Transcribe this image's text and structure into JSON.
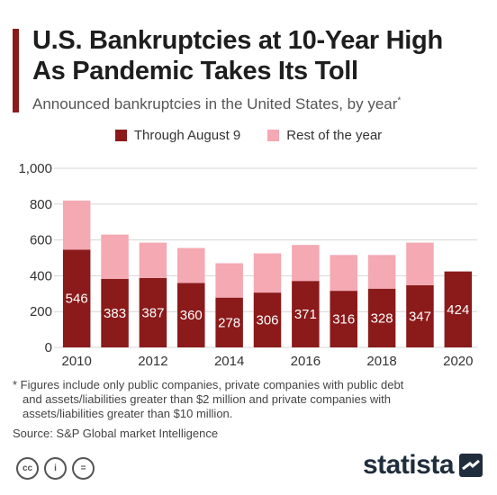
{
  "header": {
    "title_line1": "U.S. Bankruptcies at 10-Year High",
    "title_line2": "As Pandemic Takes Its Toll",
    "subtitle": "Announced bankruptcies in the United States, by year",
    "subtitle_mark": "*"
  },
  "legend": {
    "items": [
      {
        "label": "Through August 9",
        "color": "#8b1a1a"
      },
      {
        "label": "Rest of the year",
        "color": "#f4a9b3"
      }
    ]
  },
  "chart_data": {
    "type": "bar",
    "stacked": true,
    "categories": [
      "2010",
      "2011",
      "2012",
      "2013",
      "2014",
      "2015",
      "2016",
      "2017",
      "2018",
      "2019",
      "2020"
    ],
    "x_tick_labels": [
      "2010",
      "2012",
      "2014",
      "2016",
      "2018",
      "2020"
    ],
    "series": [
      {
        "name": "Through August 9",
        "color": "#8b1a1a",
        "values": [
          546,
          383,
          387,
          360,
          278,
          306,
          371,
          316,
          328,
          347,
          424
        ],
        "data_labels": [
          "546",
          "383",
          "387",
          "360",
          "278",
          "306",
          "371",
          "316",
          "328",
          "347",
          "424"
        ]
      },
      {
        "name": "Rest of the year",
        "color": "#f4a9b3",
        "values": [
          274,
          247,
          198,
          195,
          192,
          219,
          201,
          200,
          188,
          238,
          0
        ]
      }
    ],
    "ylim": [
      0,
      1000
    ],
    "yticks": [
      0,
      200,
      400,
      600,
      800,
      1000
    ],
    "ytick_labels": [
      "0",
      "200",
      "400",
      "600",
      "800",
      "1,000"
    ],
    "grid": true
  },
  "footnote": {
    "line1": "* Figures include only public companies, private companies with public debt",
    "line2": "and assets/liabilities greater than $2 million and private companies with",
    "line3": "assets/liabilities greater than $10 million."
  },
  "source": "Source: S&P Global market Intelligence",
  "license_icons": [
    {
      "icon": "creative-commons-icon",
      "glyph": "cc"
    },
    {
      "icon": "attribution-icon",
      "glyph": "i"
    },
    {
      "icon": "no-derivatives-icon",
      "glyph": "="
    }
  ],
  "brand": {
    "name": "statista"
  }
}
